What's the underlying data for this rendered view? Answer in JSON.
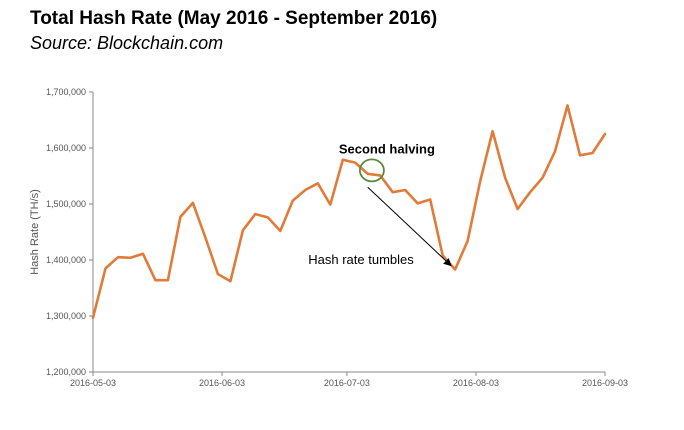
{
  "chart_data": {
    "type": "line",
    "title": "Total Hash Rate (May 2016 - September 2016)",
    "subtitle": "Source: Blockchain.com",
    "xlabel": "",
    "ylabel": "Hash Rate (TH/s)",
    "ylim": [
      1200000,
      1700000
    ],
    "yticks": [
      1200000,
      1300000,
      1400000,
      1500000,
      1600000,
      1700000
    ],
    "ytick_labels": [
      "1,200,000",
      "1,300,000",
      "1,400,000",
      "1,500,000",
      "1,600,000",
      "1,700,000"
    ],
    "xticks": [
      "2016-05-03",
      "2016-06-03",
      "2016-07-03",
      "2016-08-03",
      "2016-09-03"
    ],
    "grid": false,
    "legend": "none",
    "series": [
      {
        "color": "#E07B39",
        "x": [
          "2016-05-03",
          "2016-05-06",
          "2016-05-09",
          "2016-05-12",
          "2016-05-15",
          "2016-05-18",
          "2016-05-21",
          "2016-05-24",
          "2016-05-27",
          "2016-05-30",
          "2016-06-02",
          "2016-06-05",
          "2016-06-08",
          "2016-06-11",
          "2016-06-14",
          "2016-06-17",
          "2016-06-20",
          "2016-06-23",
          "2016-06-26",
          "2016-06-29",
          "2016-07-02",
          "2016-07-05",
          "2016-07-08",
          "2016-07-11",
          "2016-07-14",
          "2016-07-17",
          "2016-07-20",
          "2016-07-23",
          "2016-07-26",
          "2016-07-29",
          "2016-08-01",
          "2016-08-04",
          "2016-08-07",
          "2016-08-10",
          "2016-08-13",
          "2016-08-16",
          "2016-08-19",
          "2016-08-22",
          "2016-08-25",
          "2016-08-28",
          "2016-08-31",
          "2016-09-03"
        ],
        "y": [
          1297000,
          1385000,
          1405000,
          1404000,
          1411000,
          1364000,
          1364000,
          1477000,
          1502000,
          1440000,
          1375000,
          1362000,
          1453000,
          1482000,
          1476000,
          1452000,
          1506000,
          1525000,
          1537000,
          1499000,
          1579000,
          1574000,
          1554000,
          1551000,
          1521000,
          1525000,
          1501000,
          1508000,
          1408000,
          1383000,
          1434000,
          1540000,
          1630000,
          1547000,
          1491000,
          1521000,
          1547000,
          1594000,
          1676000,
          1587000,
          1591000,
          1625000
        ]
      }
    ],
    "annotations": [
      {
        "text": "Second halving",
        "x": "2016-07-09",
        "y": 1560000,
        "marker": "circle",
        "marker_color": "#5B8A3C"
      },
      {
        "text": "Hash rate tumbles",
        "arrow_from": [
          "2016-07-08",
          1530000
        ],
        "arrow_to": [
          "2016-07-28",
          1390000
        ]
      }
    ]
  }
}
